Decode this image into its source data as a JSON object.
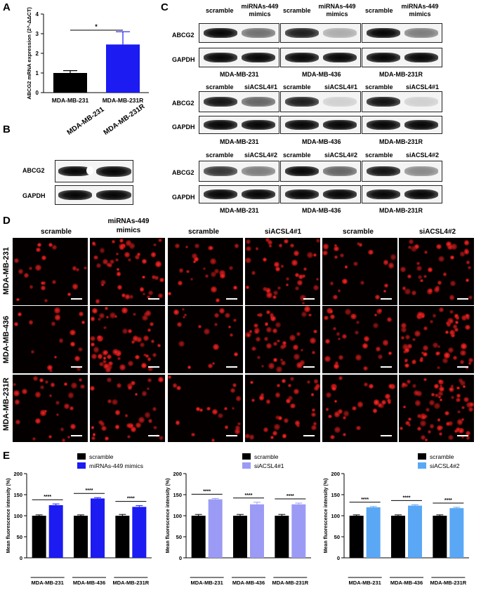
{
  "panels": {
    "A": "A",
    "B": "B",
    "C": "C",
    "D": "D",
    "E": "E"
  },
  "panelA": {
    "ylabel": "ABCG2 mRNA expression (2^-ΔΔCT)",
    "sig": "*",
    "chart_data": {
      "type": "bar",
      "categories": [
        "MDA-MB-231",
        "MDA-MB-231R"
      ],
      "values": [
        1.0,
        2.45
      ],
      "errors": [
        0.12,
        0.65
      ],
      "colors": [
        "#000000",
        "#1b1bf2"
      ],
      "ylim": [
        0,
        4
      ],
      "yticks": [
        "0",
        "1",
        "2",
        "3",
        "4"
      ]
    }
  },
  "panelB": {
    "columns": [
      "MDA-MB-231",
      "MDA-MB-231R"
    ],
    "rows": [
      "ABCG2",
      "GAPDH"
    ]
  },
  "panelC": {
    "groups": [
      {
        "cols": [
          "scramble",
          "miRNAs-449\nmimics"
        ],
        "cells": [
          "MDA-MB-231",
          "MDA-MB-436",
          "MDA-MB-231R"
        ]
      },
      {
        "cols": [
          "scramble",
          "siACSL4#1"
        ],
        "cells": [
          "MDA-MB-231",
          "MDA-MB-436",
          "MDA-MB-231R"
        ]
      },
      {
        "cols": [
          "scramble",
          "siACSL4#2"
        ],
        "cells": [
          "MDA-MB-231",
          "MDA-MB-436",
          "MDA-MB-231R"
        ]
      }
    ],
    "rows": [
      "ABCG2",
      "GAPDH"
    ],
    "col_scramble": "scramble",
    "col_mimics_l1": "miRNAs-449",
    "col_mimics_l2": "mimics",
    "col_si1": "siACSL4#1",
    "col_si2": "siACSL4#2",
    "row_abcg2": "ABCG2",
    "row_gapdh": "GAPDH",
    "cell1": "MDA-MB-231",
    "cell2": "MDA-MB-436",
    "cell3": "MDA-MB-231R"
  },
  "panelD": {
    "col_headers": [
      "scramble",
      "miRNAs-449\nmimics",
      "scramble",
      "siACSL4#1",
      "scramble",
      "siACSL4#2"
    ],
    "h_scramble": "scramble",
    "h_mimics_l1": "miRNAs-449",
    "h_mimics_l2": "mimics",
    "h_si1": "siACSL4#1",
    "h_si2": "siACSL4#2",
    "rows": [
      "MDA-MB-231",
      "MDA-MB-436",
      "MDA-MB-231R"
    ]
  },
  "panelE": {
    "ylabel": "Mean fluorescence intensity (%)",
    "yticks": [
      "0",
      "50",
      "100",
      "150",
      "200"
    ],
    "sig": "****",
    "chart_data": [
      {
        "type": "bar",
        "categories": [
          "MDA-MB-231",
          "MDA-MB-436",
          "MDA-MB-231R"
        ],
        "series": [
          {
            "name": "scramble",
            "values": [
              100,
              100,
              100
            ],
            "color": "#000000"
          },
          {
            "name": "miRNAs-449 mimics",
            "values": [
              125,
              141,
              121
            ],
            "color": "#1b1bf2"
          }
        ],
        "errors": [
          [
            2,
            2,
            3
          ],
          [
            3,
            2,
            3
          ]
        ],
        "ylim": [
          0,
          200
        ]
      },
      {
        "type": "bar",
        "categories": [
          "MDA-MB-231",
          "MDA-MB-436",
          "MDA-MB-231R"
        ],
        "series": [
          {
            "name": "scramble",
            "values": [
              100,
              100,
              100
            ],
            "color": "#000000"
          },
          {
            "name": "siACSL4#1",
            "values": [
              139,
              127,
              127
            ],
            "color": "#9b9bf5"
          }
        ],
        "errors": [
          [
            3,
            3,
            3
          ],
          [
            2,
            5,
            3
          ]
        ],
        "ylim": [
          0,
          200
        ]
      },
      {
        "type": "bar",
        "categories": [
          "MDA-MB-231",
          "MDA-MB-436",
          "MDA-MB-231R"
        ],
        "series": [
          {
            "name": "scramble",
            "values": [
              100,
              100,
              100
            ],
            "color": "#000000"
          },
          {
            "name": "siACSL4#2",
            "values": [
              120,
              124,
              118
            ],
            "color": "#5aa8f5"
          }
        ],
        "errors": [
          [
            2,
            2,
            2
          ],
          [
            2,
            2,
            2
          ]
        ],
        "ylim": [
          0,
          200
        ]
      }
    ]
  }
}
